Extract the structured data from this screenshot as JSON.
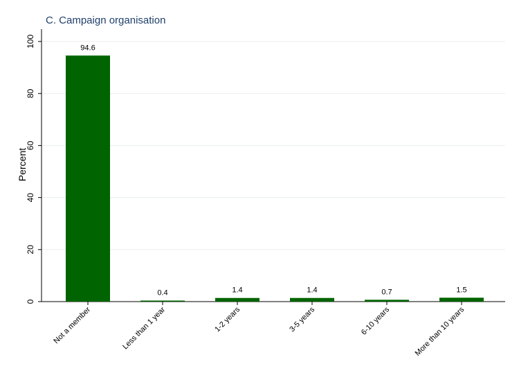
{
  "chart_data": {
    "type": "bar",
    "title": "C. Campaign organisation",
    "xlabel": "",
    "ylabel": "Percent",
    "categories": [
      "Not a member",
      "Less than 1 year",
      "1-2 years",
      "3-5 years",
      "6-10 years",
      "More than 10 years"
    ],
    "values": [
      94.6,
      0.4,
      1.4,
      1.4,
      0.7,
      1.5
    ],
    "value_labels": [
      "94.6",
      "0.4",
      "1.4",
      "1.4",
      "0.7",
      "1.5"
    ],
    "ylim": [
      0,
      100
    ],
    "yticks": [
      "0",
      "20",
      "40",
      "60",
      "80",
      "100"
    ],
    "grid": true,
    "legend": "none",
    "colors": {
      "bar": "#006400",
      "grid": "#e8edf1",
      "axis": "#000000",
      "title": "#1f3f6a"
    }
  }
}
